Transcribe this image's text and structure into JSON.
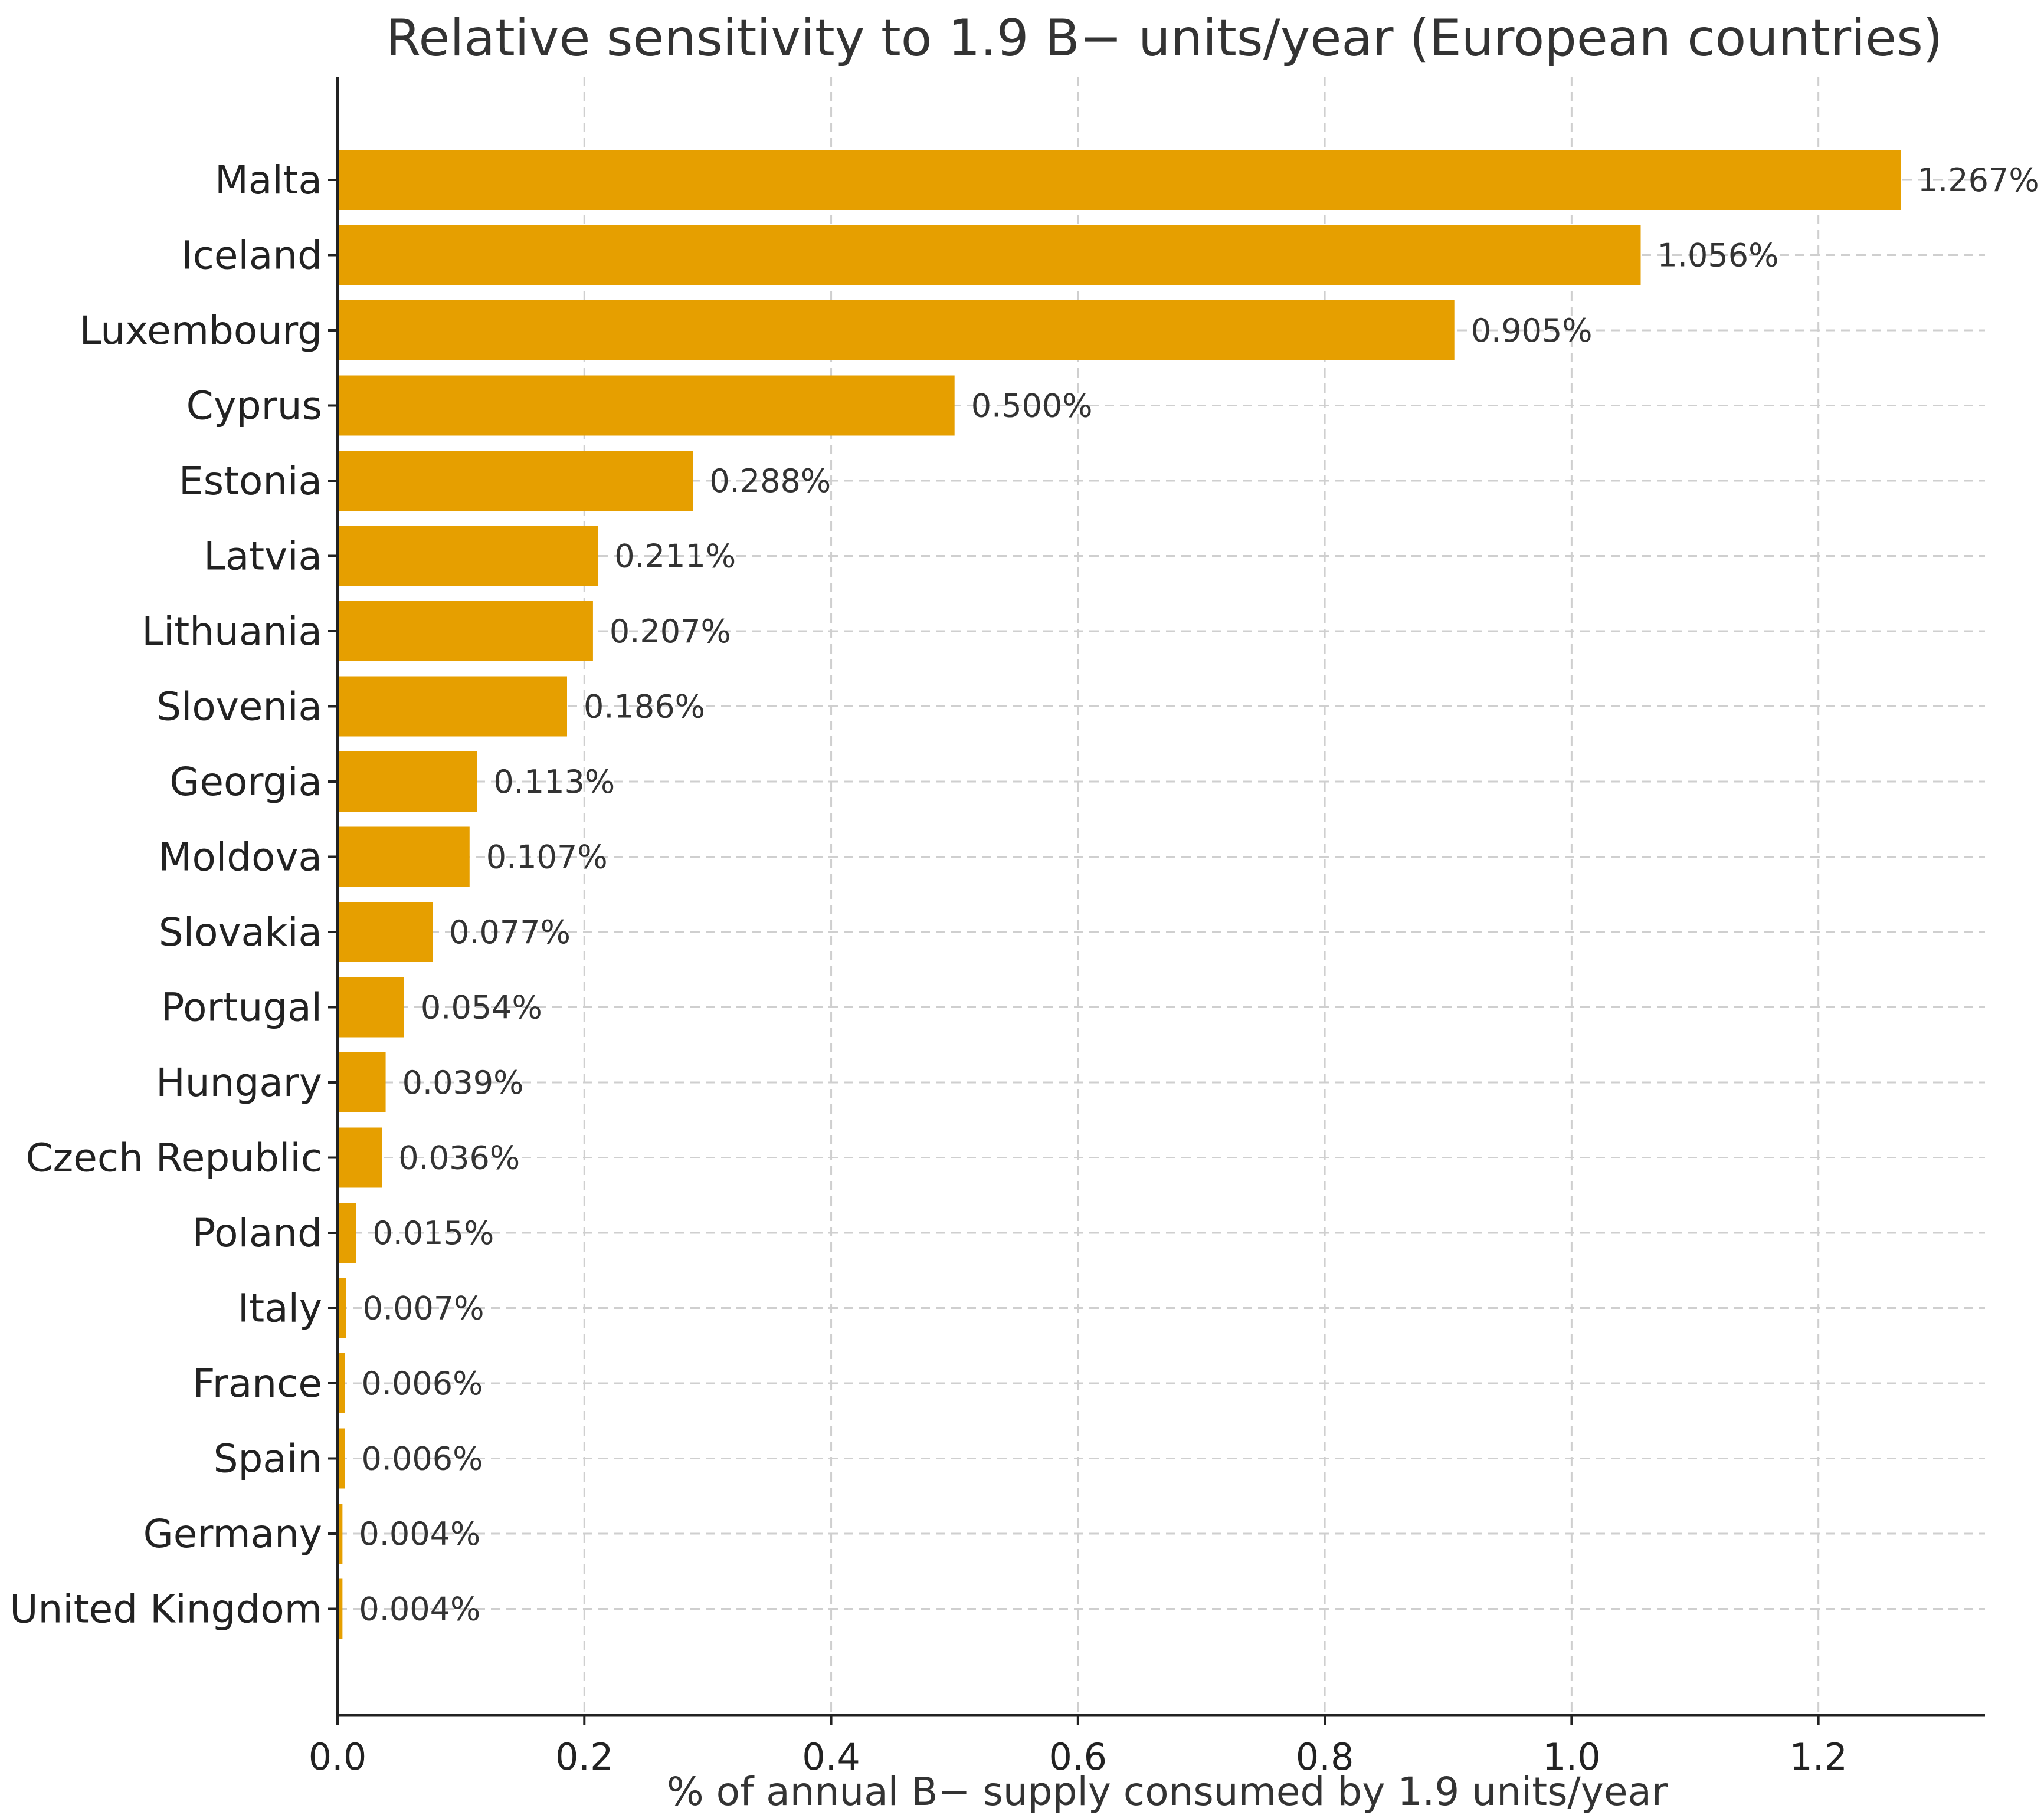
{
  "chart_data": {
    "type": "bar",
    "orientation": "horizontal",
    "title": "Relative sensitivity to 1.9 B− units/year (European countries)",
    "xlabel": "% of annual B− supply consumed by 1.9 units/year",
    "ylabel": "",
    "xlim": [
      0,
      1.335
    ],
    "x_ticks": [
      0.0,
      0.2,
      0.4,
      0.6,
      0.8,
      1.0,
      1.2
    ],
    "x_tick_labels": [
      "0.0",
      "0.2",
      "0.4",
      "0.6",
      "0.8",
      "1.0",
      "1.2"
    ],
    "grid": "dashed, both axes",
    "bar_color": "#E69F00",
    "categories": [
      "Malta",
      "Iceland",
      "Luxembourg",
      "Cyprus",
      "Estonia",
      "Latvia",
      "Lithuania",
      "Slovenia",
      "Georgia",
      "Moldova",
      "Slovakia",
      "Portugal",
      "Hungary",
      "Czech Republic",
      "Poland",
      "Italy",
      "France",
      "Spain",
      "Germany",
      "United Kingdom"
    ],
    "values": [
      1.267,
      1.056,
      0.905,
      0.5,
      0.288,
      0.211,
      0.207,
      0.186,
      0.113,
      0.107,
      0.077,
      0.054,
      0.039,
      0.036,
      0.015,
      0.007,
      0.006,
      0.006,
      0.004,
      0.004
    ],
    "data_labels": [
      "1.267%",
      "1.056%",
      "0.905%",
      "0.500%",
      "0.288%",
      "0.211%",
      "0.207%",
      "0.186%",
      "0.113%",
      "0.107%",
      "0.077%",
      "0.054%",
      "0.039%",
      "0.036%",
      "0.015%",
      "0.007%",
      "0.006%",
      "0.006%",
      "0.004%",
      "0.004%"
    ]
  }
}
